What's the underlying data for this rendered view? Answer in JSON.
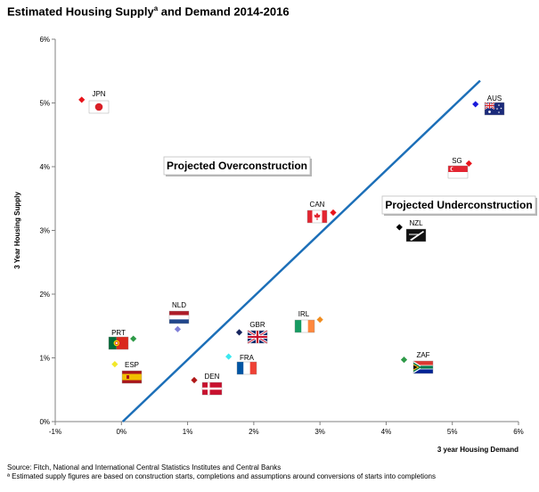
{
  "chart_data": {
    "type": "scatter",
    "title_main": "Estimated Housing Supply",
    "title_sup": "a",
    "title_rest": " and Demand 2014-2016",
    "xlabel": "3 year Housing Demand",
    "ylabel": "3 Year Housing Supply",
    "xlim": [
      -1,
      6
    ],
    "ylim": [
      0,
      6
    ],
    "x_ticks": [
      -1,
      0,
      1,
      2,
      3,
      4,
      5,
      6
    ],
    "y_ticks": [
      0,
      1,
      2,
      3,
      4,
      5,
      6
    ],
    "x_tick_labels": [
      "-1%",
      "0%",
      "1%",
      "2%",
      "3%",
      "4%",
      "5%",
      "6%"
    ],
    "y_tick_labels": [
      "0%",
      "1%",
      "2%",
      "3%",
      "4%",
      "5%",
      "6%"
    ],
    "grid": false,
    "points": [
      {
        "label": "JPN",
        "x": -0.6,
        "y": 5.05,
        "color": "#e8141b"
      },
      {
        "label": "AUS",
        "x": 5.35,
        "y": 4.98,
        "color": "#1a1adb"
      },
      {
        "label": "SG",
        "x": 5.25,
        "y": 4.05,
        "color": "#e8141b"
      },
      {
        "label": "CAN",
        "x": 3.2,
        "y": 3.28,
        "color": "#e8141b"
      },
      {
        "label": "NZL",
        "x": 4.2,
        "y": 3.05,
        "color": "#000000"
      },
      {
        "label": "IRL",
        "x": 3.0,
        "y": 1.6,
        "color": "#f08c1e"
      },
      {
        "label": "NLD",
        "x": 0.85,
        "y": 1.45,
        "color": "#8080d8"
      },
      {
        "label": "GBR",
        "x": 1.78,
        "y": 1.4,
        "color": "#17255e"
      },
      {
        "label": "PRT",
        "x": 0.18,
        "y": 1.3,
        "color": "#2e9a48"
      },
      {
        "label": "FRA",
        "x": 1.62,
        "y": 1.02,
        "color": "#3ce8f0"
      },
      {
        "label": "ZAF",
        "x": 4.27,
        "y": 0.97,
        "color": "#2e9a48"
      },
      {
        "label": "ESP",
        "x": -0.1,
        "y": 0.9,
        "color": "#f2e82a"
      },
      {
        "label": "DEN",
        "x": 1.1,
        "y": 0.65,
        "color": "#b01818"
      }
    ],
    "trendline": {
      "x": [
        0.02,
        5.42
      ],
      "y": [
        0.0,
        5.35
      ],
      "color": "#1c6fb8"
    },
    "annotations": [
      "Projected Overconstruction",
      "Projected Underconstruction"
    ]
  },
  "footer": {
    "source": "Source:  Fitch, National and International Central Statistics Institutes and Central Banks",
    "note": "ª Estimated supply figures are based on construction starts, completions and assumptions around conversions of starts into completions"
  }
}
